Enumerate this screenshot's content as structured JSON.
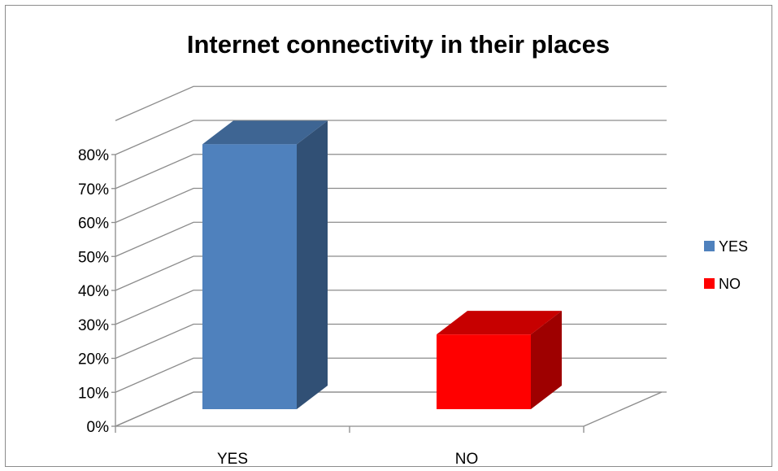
{
  "chart_data": {
    "type": "bar",
    "title": "Internet connectivity in their places",
    "categories": [
      "YES",
      "NO"
    ],
    "series": [
      {
        "name": "YES",
        "color": "#4f81bd",
        "values": [
          78,
          null
        ]
      },
      {
        "name": "NO",
        "color": "#ff0000",
        "values": [
          null,
          22
        ]
      }
    ],
    "ylim": [
      0,
      80
    ],
    "yticks": [
      0,
      10,
      20,
      30,
      40,
      50,
      60,
      70,
      80
    ],
    "ytick_labels": [
      "0%",
      "10%",
      "20%",
      "30%",
      "40%",
      "50%",
      "60%",
      "70%",
      "80%"
    ],
    "xlabel": "",
    "ylabel": "",
    "grid": true,
    "legend_position": "right",
    "style": "3d-column"
  }
}
